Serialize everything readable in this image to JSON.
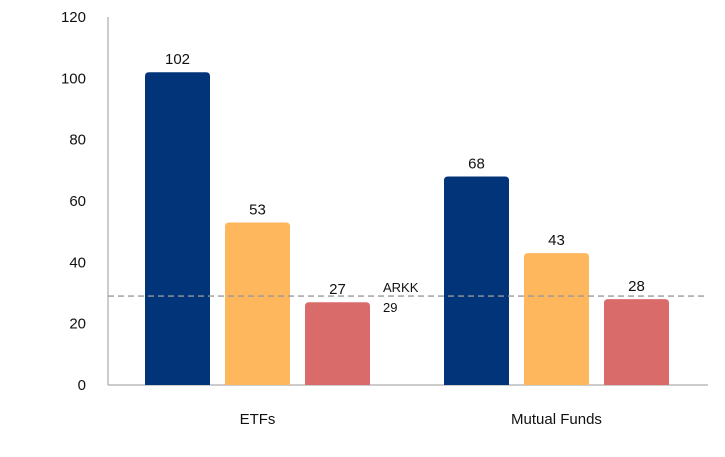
{
  "chart_data": {
    "type": "bar",
    "categories": [
      "ETFs",
      "Mutual Funds"
    ],
    "series": [
      {
        "values": [
          102,
          68
        ],
        "color": "#02347a"
      },
      {
        "values": [
          53,
          43
        ],
        "color": "#ffb75e"
      },
      {
        "values": [
          27,
          28
        ],
        "color": "#d96b6b"
      }
    ],
    "ylim": [
      0,
      120
    ],
    "yticks": [
      0,
      20,
      40,
      60,
      80,
      100,
      120
    ],
    "reference_line": {
      "label": "ARKK",
      "value": 29,
      "style": "dashed",
      "color": "#999999"
    },
    "grid": false,
    "legend": "none"
  }
}
